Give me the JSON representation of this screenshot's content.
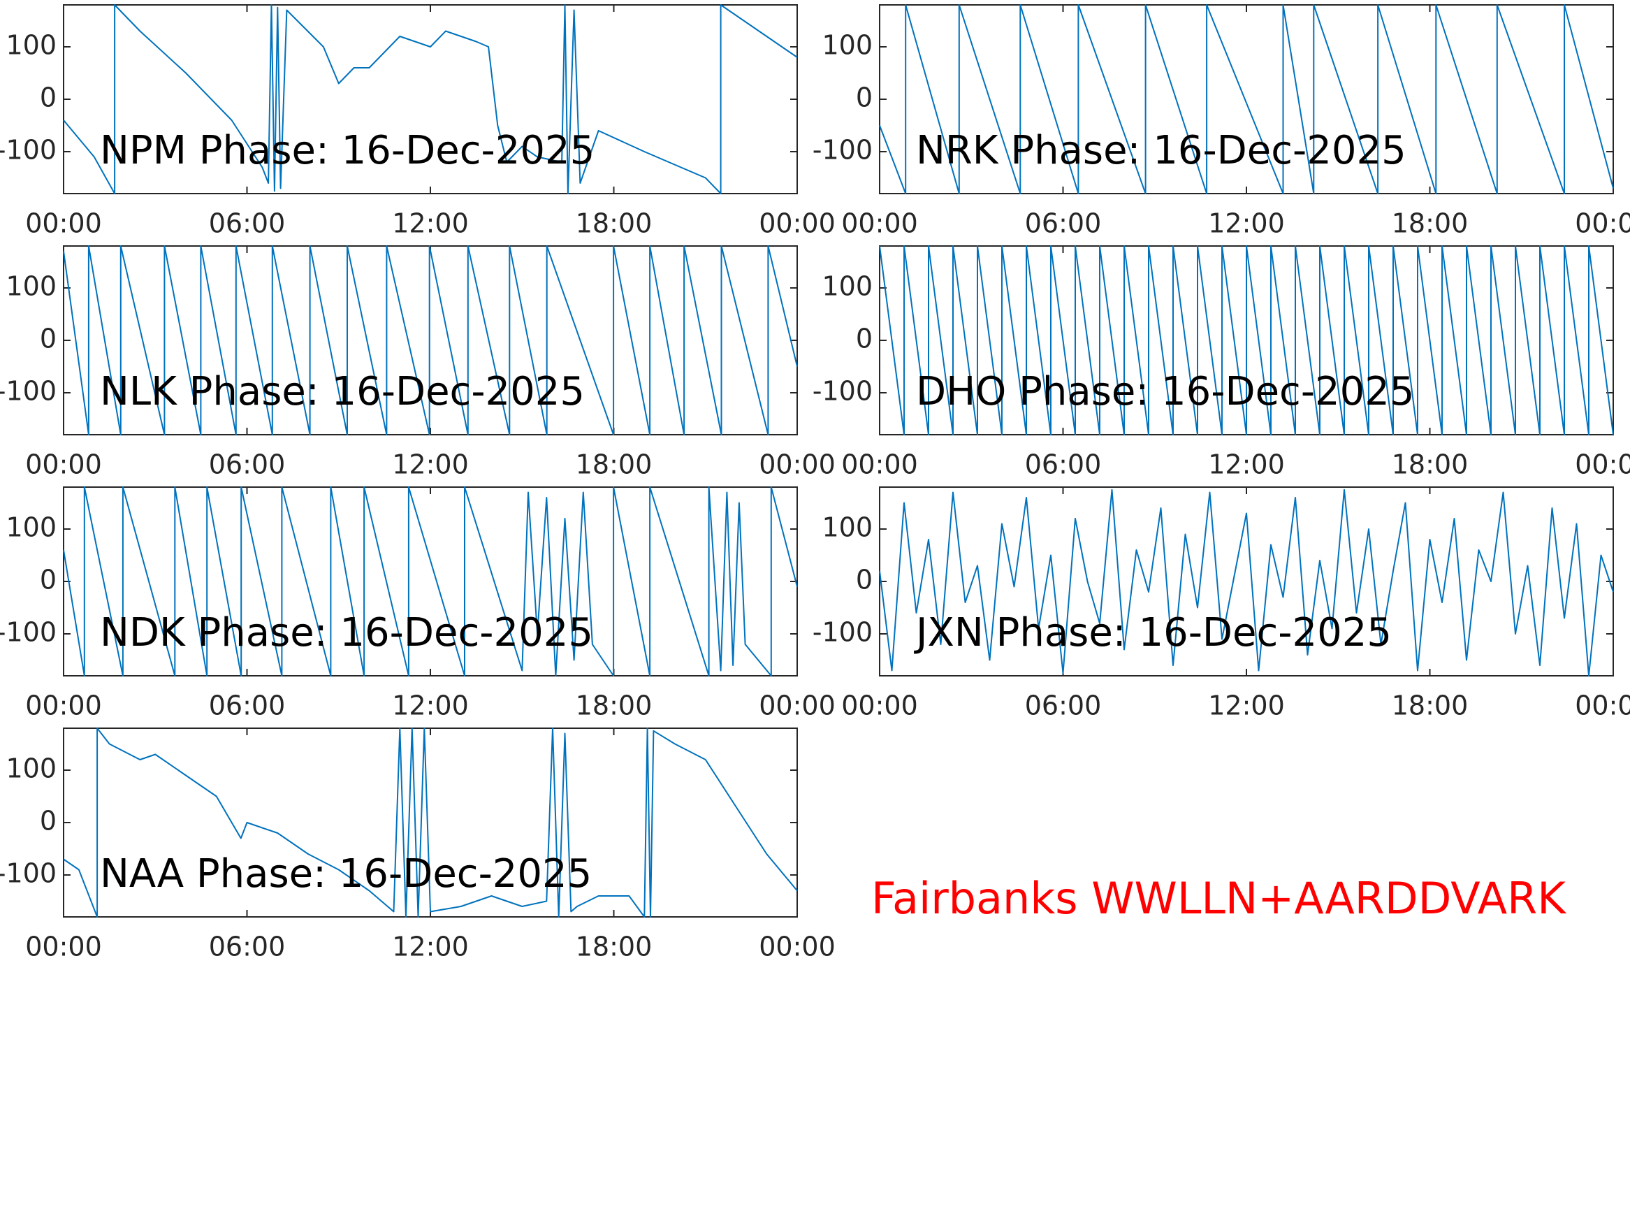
{
  "chart_data": [
    {
      "type": "line",
      "title": "NPM Phase: 16-Dec-2025",
      "color": "#0072bd",
      "xlim": [
        0,
        24
      ],
      "ylim": [
        -180,
        180
      ],
      "xticks": [
        {
          "value": 0,
          "label": "00:00"
        },
        {
          "value": 6,
          "label": "06:00"
        },
        {
          "value": 12,
          "label": "12:00"
        },
        {
          "value": 18,
          "label": "18:00"
        },
        {
          "value": 24,
          "label": "00:00"
        }
      ],
      "yticks": [
        -100,
        0,
        100
      ],
      "x": [
        0,
        1.0,
        1.67,
        1.67,
        2.5,
        4,
        5.5,
        6.5,
        6.7,
        6.8,
        6.9,
        7.0,
        7.1,
        7.3,
        8.5,
        9,
        9.5,
        10,
        11,
        12,
        12.5,
        13.5,
        13.9,
        14.2,
        14.5,
        15,
        15.5,
        16.3,
        16.4,
        16.5,
        16.7,
        16.9,
        17.5,
        19,
        21,
        21.5,
        21.5,
        24
      ],
      "values": [
        -40,
        -110,
        -180,
        180,
        130,
        50,
        -40,
        -130,
        -160,
        180,
        -175,
        175,
        -170,
        170,
        100,
        30,
        60,
        60,
        120,
        100,
        130,
        110,
        100,
        -50,
        -120,
        -90,
        -110,
        -120,
        180,
        -180,
        170,
        -160,
        -60,
        -100,
        -150,
        -180,
        180,
        80
      ]
    },
    {
      "type": "line",
      "title": "NRK Phase: 16-Dec-2025",
      "color": "#0072bd",
      "xlim": [
        0,
        24
      ],
      "ylim": [
        -180,
        180
      ],
      "xticks": [
        {
          "value": 0,
          "label": "00:00"
        },
        {
          "value": 6,
          "label": "06:00"
        },
        {
          "value": 12,
          "label": "12:00"
        },
        {
          "value": 18,
          "label": "18:00"
        },
        {
          "value": 24,
          "label": "00:00"
        }
      ],
      "yticks": [
        -100,
        0,
        100
      ],
      "x": [
        0,
        0.85,
        0.85,
        2.6,
        2.6,
        4.6,
        4.6,
        6.5,
        6.5,
        8.7,
        8.7,
        10.7,
        10.7,
        13.2,
        13.2,
        14.2,
        14.2,
        16.3,
        16.3,
        18.2,
        18.2,
        20.2,
        20.2,
        22.4,
        22.4,
        24
      ],
      "values": [
        -50,
        -180,
        180,
        -180,
        180,
        -180,
        180,
        -180,
        180,
        -180,
        180,
        -180,
        180,
        -180,
        180,
        -180,
        180,
        -180,
        180,
        -180,
        180,
        -180,
        180,
        -180,
        180,
        -170
      ]
    },
    {
      "type": "line",
      "title": "NLK Phase: 16-Dec-2025",
      "color": "#0072bd",
      "xlim": [
        0,
        24
      ],
      "ylim": [
        -180,
        180
      ],
      "xticks": [
        {
          "value": 0,
          "label": "00:00"
        },
        {
          "value": 6,
          "label": "06:00"
        },
        {
          "value": 12,
          "label": "12:00"
        },
        {
          "value": 18,
          "label": "18:00"
        },
        {
          "value": 24,
          "label": "00:00"
        }
      ],
      "yticks": [
        -100,
        0,
        100
      ],
      "x": [
        0,
        0.82,
        0.82,
        1.87,
        1.87,
        3.3,
        3.3,
        4.49,
        4.49,
        5.64,
        5.64,
        6.83,
        6.83,
        8.06,
        8.06,
        9.28,
        9.28,
        10.57,
        10.57,
        11.97,
        11.97,
        13.23,
        13.23,
        14.59,
        14.59,
        15.81,
        15.81,
        17.99,
        17.99,
        19.18,
        19.18,
        20.3,
        20.3,
        21.52,
        21.52,
        23.05,
        23.05,
        24
      ],
      "values": [
        170,
        -180,
        180,
        -180,
        180,
        -180,
        180,
        -180,
        180,
        -180,
        180,
        -180,
        180,
        -180,
        180,
        -180,
        180,
        -180,
        180,
        -180,
        180,
        -180,
        180,
        -180,
        180,
        -180,
        180,
        -180,
        180,
        -180,
        180,
        -180,
        180,
        -180,
        180,
        -180,
        180,
        -50
      ]
    },
    {
      "type": "line",
      "title": "DHO Phase: 16-Dec-2025",
      "color": "#0072bd",
      "xlim": [
        0,
        24
      ],
      "ylim": [
        -180,
        180
      ],
      "xticks": [
        {
          "value": 0,
          "label": "00:00"
        },
        {
          "value": 6,
          "label": "06:00"
        },
        {
          "value": 12,
          "label": "12:00"
        },
        {
          "value": 18,
          "label": "18:00"
        },
        {
          "value": 24,
          "label": "00:00"
        }
      ],
      "yticks": [
        -100,
        0,
        100
      ],
      "x": [
        0,
        0.8,
        0.8,
        1.6,
        1.6,
        2.4,
        2.4,
        3.2,
        3.2,
        4,
        4,
        4.8,
        4.8,
        5.6,
        5.6,
        6.4,
        6.4,
        7.2,
        7.2,
        8,
        8,
        8.8,
        8.8,
        9.6,
        9.6,
        10.4,
        10.4,
        11.2,
        11.2,
        12,
        12,
        12.8,
        12.8,
        13.6,
        13.6,
        14.4,
        14.4,
        15.2,
        15.2,
        16,
        16,
        16.8,
        16.8,
        17.6,
        17.6,
        18.4,
        18.4,
        19.2,
        19.2,
        20,
        20,
        20.8,
        20.8,
        21.6,
        21.6,
        22.4,
        22.4,
        23.2,
        23.2,
        24
      ],
      "values": [
        180,
        -180,
        180,
        -180,
        180,
        -180,
        180,
        -180,
        180,
        -180,
        180,
        -180,
        180,
        -180,
        180,
        -180,
        180,
        -180,
        180,
        -180,
        180,
        -180,
        180,
        -180,
        180,
        -180,
        180,
        -180,
        180,
        -180,
        180,
        -180,
        180,
        -180,
        180,
        -180,
        180,
        -180,
        180,
        -180,
        180,
        -180,
        180,
        -180,
        180,
        -180,
        180,
        -180,
        180,
        -180,
        180,
        -180,
        180,
        -180,
        180,
        -180,
        180,
        -180,
        180,
        -180
      ]
    },
    {
      "type": "line",
      "title": "NDK Phase: 16-Dec-2025",
      "color": "#0072bd",
      "xlim": [
        0,
        24
      ],
      "ylim": [
        -180,
        180
      ],
      "xticks": [
        {
          "value": 0,
          "label": "00:00"
        },
        {
          "value": 6,
          "label": "06:00"
        },
        {
          "value": 12,
          "label": "12:00"
        },
        {
          "value": 18,
          "label": "18:00"
        },
        {
          "value": 24,
          "label": "00:00"
        }
      ],
      "yticks": [
        -100,
        0,
        100
      ],
      "x": [
        0,
        0.68,
        0.68,
        1.94,
        1.94,
        3.64,
        3.64,
        4.69,
        4.69,
        5.81,
        5.81,
        7.14,
        7.14,
        8.74,
        8.74,
        9.83,
        9.83,
        11.29,
        11.29,
        13.12,
        13.12,
        15,
        15.2,
        15.5,
        15.8,
        16.1,
        16.4,
        16.7,
        17,
        17.3,
        17.99,
        17.99,
        19.18,
        19.18,
        21.11,
        21.11,
        21.5,
        21.7,
        21.9,
        22.1,
        22.3,
        23.15,
        23.15,
        24
      ],
      "values": [
        60,
        -180,
        180,
        -180,
        180,
        -180,
        180,
        -180,
        180,
        -180,
        180,
        -180,
        180,
        -180,
        180,
        -180,
        180,
        -180,
        180,
        -180,
        180,
        -170,
        170,
        -100,
        160,
        -180,
        120,
        -150,
        170,
        -120,
        -180,
        180,
        -180,
        180,
        -180,
        180,
        -170,
        170,
        -160,
        150,
        -120,
        -180,
        180,
        -10
      ]
    },
    {
      "type": "line",
      "title": "JXN Phase: 16-Dec-2025",
      "color": "#0072bd",
      "xlim": [
        0,
        24
      ],
      "ylim": [
        -180,
        180
      ],
      "xticks": [
        {
          "value": 0,
          "label": "00:00"
        },
        {
          "value": 6,
          "label": "06:00"
        },
        {
          "value": 12,
          "label": "12:00"
        },
        {
          "value": 18,
          "label": "18:00"
        },
        {
          "value": 24,
          "label": "00:00"
        }
      ],
      "yticks": [
        -100,
        0,
        100
      ],
      "x": [
        0,
        0.4,
        0.8,
        1.2,
        1.6,
        2,
        2.4,
        2.8,
        3.2,
        3.6,
        4,
        4.4,
        4.8,
        5.2,
        5.6,
        6,
        6.4,
        6.8,
        7.2,
        7.6,
        8,
        8.4,
        8.8,
        9.2,
        9.6,
        10,
        10.4,
        10.8,
        11.2,
        11.6,
        12,
        12.4,
        12.8,
        13.2,
        13.6,
        14,
        14.4,
        14.8,
        15.2,
        15.6,
        16,
        16.4,
        16.8,
        17.2,
        17.6,
        18,
        18.4,
        18.8,
        19.2,
        19.6,
        20,
        20.4,
        20.8,
        21.2,
        21.6,
        22,
        22.4,
        22.8,
        23.2,
        23.6,
        24
      ],
      "values": [
        20,
        -170,
        150,
        -60,
        80,
        -120,
        170,
        -40,
        30,
        -150,
        110,
        -10,
        160,
        -90,
        50,
        -175,
        120,
        0,
        -80,
        175,
        -130,
        60,
        -20,
        140,
        -160,
        90,
        -50,
        170,
        -110,
        10,
        130,
        -170,
        70,
        -30,
        160,
        -140,
        40,
        -90,
        175,
        -60,
        100,
        -120,
        20,
        150,
        -170,
        80,
        -40,
        120,
        -150,
        60,
        0,
        170,
        -100,
        30,
        -160,
        140,
        -70,
        110,
        -180,
        50,
        -20
      ]
    },
    {
      "type": "line",
      "title": "NAA Phase: 16-Dec-2025",
      "color": "#0072bd",
      "xlim": [
        0,
        24
      ],
      "ylim": [
        -180,
        180
      ],
      "xticks": [
        {
          "value": 0,
          "label": "00:00"
        },
        {
          "value": 6,
          "label": "06:00"
        },
        {
          "value": 12,
          "label": "12:00"
        },
        {
          "value": 18,
          "label": "18:00"
        },
        {
          "value": 24,
          "label": "00:00"
        }
      ],
      "yticks": [
        -100,
        0,
        100
      ],
      "x": [
        0,
        0.5,
        1.1,
        1.1,
        1.5,
        2.5,
        3,
        4,
        5,
        5.3,
        5.8,
        6,
        7,
        8,
        9,
        10,
        10.8,
        11.0,
        11.2,
        11.4,
        11.6,
        11.8,
        12.0,
        13,
        14,
        15,
        15.8,
        16,
        16.2,
        16.4,
        16.6,
        16.8,
        17.5,
        18.5,
        19.0,
        19.1,
        19.2,
        19.3,
        20,
        21,
        22,
        23,
        24
      ],
      "values": [
        -70,
        -90,
        -180,
        180,
        150,
        120,
        130,
        90,
        50,
        20,
        -30,
        0,
        -20,
        -60,
        -90,
        -130,
        -170,
        180,
        -180,
        180,
        -180,
        180,
        -170,
        -160,
        -140,
        -160,
        -150,
        180,
        -180,
        170,
        -170,
        -160,
        -140,
        -140,
        -180,
        180,
        -180,
        175,
        150,
        120,
        30,
        -60,
        -130
      ]
    }
  ],
  "annotation": {
    "text": "Fairbanks WWLLN+AARDDVARK",
    "color": "#ff0000"
  }
}
